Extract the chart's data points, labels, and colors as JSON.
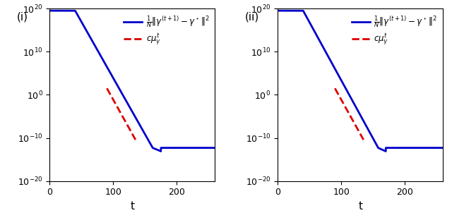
{
  "xlim": [
    0,
    260
  ],
  "ylim_bottom": 1e-20,
  "ylim_top": 1e+20,
  "yticks_exp": [
    -20,
    -10,
    0,
    10,
    20
  ],
  "xticks": [
    0,
    100,
    200
  ],
  "xlabel": "t",
  "label_i": "(i)",
  "label_ii": "(ii)",
  "legend_blue": "$\\frac{1}{N}\\|\\gamma^{(t+1)} - \\gamma^\\star\\|^2$",
  "legend_red": "$c\\mu_{\\gamma}^t$",
  "blue_color": "#0000cc",
  "red_color": "#dd0000",
  "linewidth": 2.0,
  "blue_flat_start_log": 19.5,
  "blue_flat_end_t_i": 40,
  "blue_drop_end_t_i": 162,
  "blue_floor_start_t_i": 175,
  "blue_floor_log": -12.3,
  "blue_flat_end_t_ii": 40,
  "blue_drop_end_t_ii": 158,
  "blue_floor_start_t_ii": 170,
  "red_start_t": 90,
  "red_end_t": 135,
  "red_start_log": 1.5,
  "red_slope_decades_per_t": -0.265
}
